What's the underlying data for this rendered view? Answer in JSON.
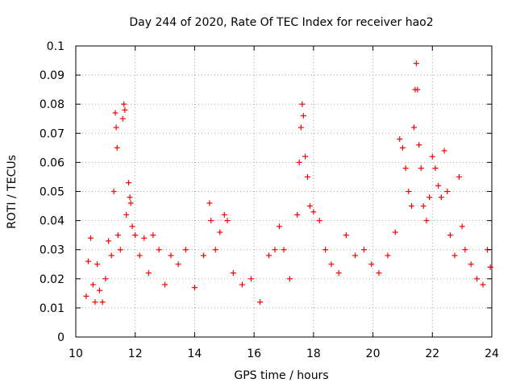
{
  "chart_data": {
    "type": "scatter",
    "title": "Day 244 of 2020, Rate Of TEC Index for receiver hao2",
    "xlabel": "GPS time / hours",
    "ylabel": "ROTI / TECUs",
    "xlim": [
      10,
      24
    ],
    "ylim": [
      0,
      0.1
    ],
    "xticks": [
      10,
      12,
      14,
      16,
      18,
      20,
      22,
      24
    ],
    "xtick_labels": [
      "10",
      "12",
      "14",
      "16",
      "18",
      "20",
      "22",
      "24"
    ],
    "yticks": [
      0,
      0.01,
      0.02,
      0.03,
      0.04,
      0.05,
      0.06,
      0.07,
      0.08,
      0.09,
      0.1
    ],
    "ytick_labels": [
      "0",
      "0.01",
      "0.02",
      "0.03",
      "0.04",
      "0.05",
      "0.06",
      "0.07",
      "0.08",
      "0.09",
      "0.1"
    ],
    "grid": true,
    "marker": "+",
    "marker_color": "#ff0000",
    "series": [
      {
        "name": "ROTI",
        "x": [
          10.35,
          10.42,
          10.5,
          10.58,
          10.65,
          10.72,
          10.8,
          10.9,
          11.0,
          11.1,
          11.2,
          11.28,
          11.33,
          11.36,
          11.39,
          11.42,
          11.5,
          11.58,
          11.62,
          11.65,
          11.7,
          11.78,
          11.82,
          11.85,
          11.9,
          12.0,
          12.15,
          12.3,
          12.45,
          12.6,
          12.8,
          13.0,
          13.2,
          13.45,
          13.7,
          14.0,
          14.3,
          14.5,
          14.55,
          14.7,
          14.85,
          15.0,
          15.1,
          15.3,
          15.6,
          15.9,
          16.2,
          16.5,
          16.7,
          16.85,
          17.0,
          17.2,
          17.45,
          17.52,
          17.58,
          17.62,
          17.66,
          17.72,
          17.8,
          17.88,
          18.0,
          18.2,
          18.4,
          18.6,
          18.85,
          19.1,
          19.4,
          19.7,
          19.95,
          20.2,
          20.5,
          20.75,
          20.9,
          21.0,
          21.1,
          21.2,
          21.3,
          21.38,
          21.42,
          21.46,
          21.5,
          21.55,
          21.62,
          21.7,
          21.8,
          21.9,
          22.0,
          22.1,
          22.2,
          22.3,
          22.4,
          22.5,
          22.6,
          22.75,
          22.9,
          23.0,
          23.1,
          23.3,
          23.5,
          23.7,
          23.85,
          23.95
        ],
        "y": [
          0.014,
          0.026,
          0.034,
          0.018,
          0.012,
          0.025,
          0.016,
          0.012,
          0.02,
          0.033,
          0.028,
          0.05,
          0.077,
          0.072,
          0.065,
          0.035,
          0.03,
          0.075,
          0.08,
          0.078,
          0.042,
          0.053,
          0.048,
          0.046,
          0.038,
          0.035,
          0.028,
          0.034,
          0.022,
          0.035,
          0.03,
          0.018,
          0.028,
          0.025,
          0.03,
          0.017,
          0.028,
          0.046,
          0.04,
          0.03,
          0.036,
          0.042,
          0.04,
          0.022,
          0.018,
          0.02,
          0.012,
          0.028,
          0.03,
          0.038,
          0.03,
          0.02,
          0.042,
          0.06,
          0.072,
          0.08,
          0.076,
          0.062,
          0.055,
          0.045,
          0.043,
          0.04,
          0.03,
          0.025,
          0.022,
          0.035,
          0.028,
          0.03,
          0.025,
          0.022,
          0.028,
          0.036,
          0.068,
          0.065,
          0.058,
          0.05,
          0.045,
          0.072,
          0.085,
          0.094,
          0.085,
          0.066,
          0.058,
          0.045,
          0.04,
          0.048,
          0.062,
          0.058,
          0.052,
          0.048,
          0.064,
          0.05,
          0.035,
          0.028,
          0.055,
          0.038,
          0.03,
          0.025,
          0.02,
          0.018,
          0.03,
          0.024
        ]
      }
    ]
  }
}
